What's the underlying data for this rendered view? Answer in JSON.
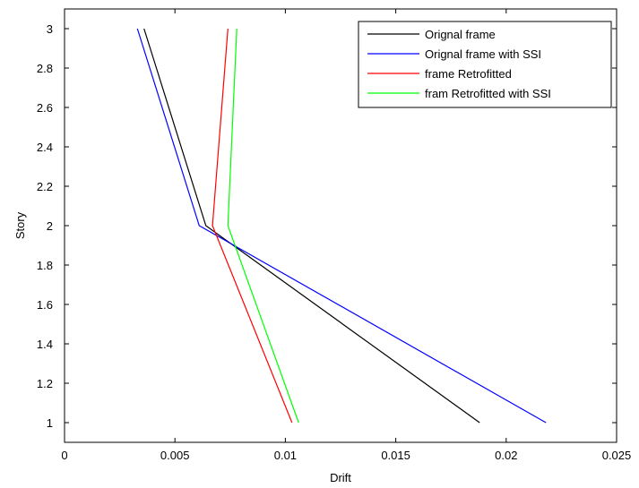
{
  "chart_data": {
    "type": "line",
    "title": "",
    "xlabel": "Drift",
    "ylabel": "Story",
    "xlim": [
      0,
      0.025
    ],
    "ylim": [
      0.9,
      3.1
    ],
    "xticks": [
      0,
      0.005,
      0.01,
      0.015,
      0.02,
      0.025
    ],
    "xtick_labels": [
      "0",
      "0.005",
      "0.01",
      "0.015",
      "0.02",
      "0.025"
    ],
    "yticks": [
      1,
      1.2,
      1.4,
      1.6,
      1.8,
      2,
      2.2,
      2.4,
      2.6,
      2.8,
      3
    ],
    "ytick_labels": [
      "1",
      "1.2",
      "1.4",
      "1.6",
      "1.8",
      "2",
      "2.2",
      "2.4",
      "2.6",
      "2.8",
      "3"
    ],
    "grid": false,
    "legend_position": "top-right",
    "series": [
      {
        "name": "Orignal frame",
        "color": "#000000",
        "x": [
          0.0188,
          0.0064,
          0.0036
        ],
        "y": [
          1,
          2,
          3
        ]
      },
      {
        "name": "Orignal frame with SSI",
        "color": "#0000ff",
        "x": [
          0.0218,
          0.0061,
          0.0033
        ],
        "y": [
          1,
          2,
          3
        ]
      },
      {
        "name": "frame Retrofitted",
        "color": "#ff0000",
        "x": [
          0.0103,
          0.0067,
          0.0074
        ],
        "y": [
          1,
          2,
          3
        ]
      },
      {
        "name": "fram Retrofitted with SSI",
        "color": "#00ff00",
        "x": [
          0.0106,
          0.0074,
          0.0078
        ],
        "y": [
          1,
          2,
          3
        ]
      }
    ]
  }
}
